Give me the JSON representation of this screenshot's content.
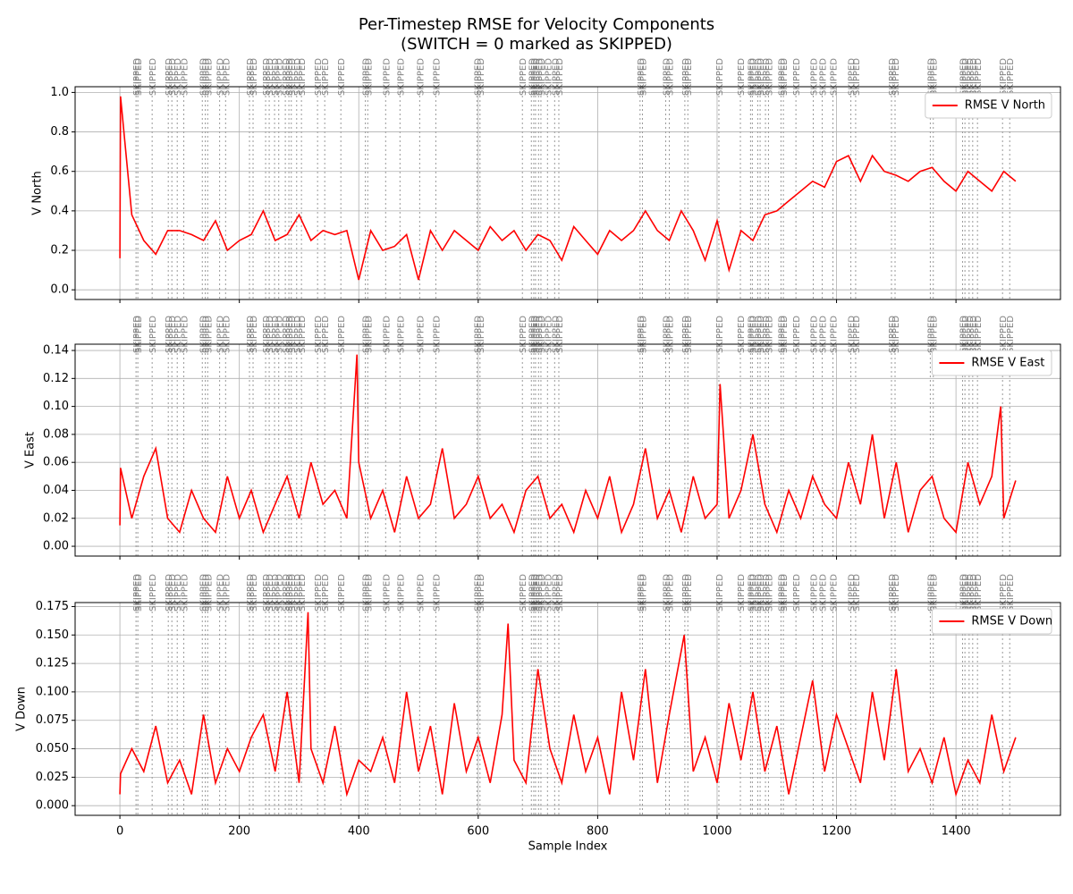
{
  "title": "Per-Timestep RMSE for Velocity Components\n(SWITCH = 0 marked as SKIPPED)",
  "chart_data": [
    {
      "type": "line",
      "ylabel": "V North",
      "legend": "upper right",
      "grid": true,
      "annotation": "SKIPPED",
      "annotation_x": [
        27,
        30,
        54,
        81,
        87,
        96,
        107,
        138,
        143,
        147,
        167,
        177,
        217,
        223,
        244,
        250,
        259,
        266,
        277,
        283,
        287,
        296,
        304,
        331,
        343,
        370,
        411,
        415,
        445,
        469,
        502,
        529,
        598,
        603,
        674,
        689,
        693,
        696,
        701,
        705,
        716,
        728,
        735,
        871,
        875,
        914,
        920,
        946,
        951,
        1003,
        1039,
        1056,
        1059,
        1068,
        1072,
        1081,
        1086,
        1107,
        1111,
        1132,
        1161,
        1176,
        1194,
        1224,
        1232,
        1292,
        1298,
        1357,
        1362,
        1411,
        1415,
        1422,
        1428,
        1436,
        1478,
        1490
      ],
      "x": [
        0,
        1,
        20,
        40,
        60,
        80,
        100,
        120,
        140,
        160,
        180,
        200,
        220,
        240,
        260,
        280,
        300,
        320,
        340,
        360,
        380,
        400,
        420,
        440,
        460,
        480,
        500,
        520,
        540,
        560,
        580,
        600,
        620,
        640,
        660,
        680,
        700,
        720,
        740,
        760,
        780,
        800,
        820,
        840,
        860,
        880,
        900,
        920,
        940,
        960,
        980,
        1000,
        1020,
        1040,
        1060,
        1080,
        1100,
        1120,
        1140,
        1160,
        1180,
        1200,
        1220,
        1240,
        1260,
        1280,
        1300,
        1320,
        1340,
        1360,
        1380,
        1400,
        1420,
        1440,
        1460,
        1480,
        1500
      ],
      "series": [
        {
          "name": "RMSE V North",
          "color": "#ff0000",
          "values": [
            0.16,
            0.98,
            0.38,
            0.25,
            0.18,
            0.3,
            0.3,
            0.28,
            0.25,
            0.35,
            0.2,
            0.25,
            0.28,
            0.4,
            0.25,
            0.28,
            0.38,
            0.25,
            0.3,
            0.28,
            0.3,
            0.05,
            0.3,
            0.2,
            0.22,
            0.28,
            0.05,
            0.3,
            0.2,
            0.3,
            0.25,
            0.2,
            0.32,
            0.25,
            0.3,
            0.2,
            0.28,
            0.25,
            0.15,
            0.32,
            0.25,
            0.18,
            0.3,
            0.25,
            0.3,
            0.4,
            0.3,
            0.25,
            0.4,
            0.3,
            0.15,
            0.35,
            0.1,
            0.3,
            0.25,
            0.38,
            0.4,
            0.45,
            0.5,
            0.55,
            0.52,
            0.65,
            0.68,
            0.55,
            0.68,
            0.6,
            0.58,
            0.55,
            0.6,
            0.62,
            0.55,
            0.5,
            0.6,
            0.55,
            0.5,
            0.6,
            0.55
          ]
        }
      ],
      "xlim": [
        -75,
        1575
      ],
      "xticks": [
        0,
        200,
        400,
        600,
        800,
        1000,
        1200,
        1400
      ],
      "ylim": [
        -0.049,
        1.029
      ],
      "yticks": [
        {
          "value": 0,
          "label": "0.0"
        },
        0.2,
        0.4,
        0.6,
        0.8,
        {
          "value": 1,
          "label": "1.0"
        }
      ]
    },
    {
      "type": "line",
      "ylabel": "V East",
      "legend": "upper right",
      "grid": true,
      "annotation": "SKIPPED",
      "annotation_x": [
        27,
        30,
        54,
        81,
        87,
        96,
        107,
        138,
        143,
        147,
        167,
        177,
        217,
        223,
        244,
        250,
        259,
        266,
        277,
        283,
        287,
        296,
        304,
        331,
        343,
        370,
        411,
        415,
        445,
        469,
        502,
        529,
        598,
        603,
        674,
        689,
        693,
        696,
        701,
        705,
        716,
        728,
        735,
        871,
        875,
        914,
        920,
        946,
        951,
        1003,
        1039,
        1056,
        1059,
        1068,
        1072,
        1081,
        1086,
        1107,
        1111,
        1132,
        1161,
        1176,
        1194,
        1224,
        1232,
        1292,
        1298,
        1357,
        1362,
        1411,
        1415,
        1422,
        1428,
        1436,
        1478,
        1490
      ],
      "x": [
        0,
        1,
        20,
        40,
        60,
        80,
        100,
        120,
        140,
        160,
        180,
        200,
        220,
        240,
        260,
        280,
        300,
        320,
        340,
        360,
        380,
        397,
        400,
        420,
        440,
        460,
        480,
        500,
        520,
        540,
        560,
        580,
        600,
        620,
        640,
        660,
        680,
        700,
        720,
        740,
        760,
        780,
        800,
        820,
        840,
        860,
        880,
        900,
        920,
        940,
        960,
        980,
        1000,
        1005,
        1020,
        1040,
        1060,
        1080,
        1100,
        1120,
        1140,
        1160,
        1180,
        1200,
        1220,
        1240,
        1260,
        1280,
        1300,
        1320,
        1340,
        1360,
        1380,
        1400,
        1420,
        1440,
        1460,
        1475,
        1480,
        1500
      ],
      "series": [
        {
          "name": "RMSE V East",
          "color": "#ff0000",
          "values": [
            0.015,
            0.056,
            0.02,
            0.05,
            0.07,
            0.02,
            0.01,
            0.04,
            0.02,
            0.01,
            0.05,
            0.02,
            0.04,
            0.01,
            0.03,
            0.05,
            0.02,
            0.06,
            0.03,
            0.04,
            0.02,
            0.137,
            0.06,
            0.02,
            0.04,
            0.01,
            0.05,
            0.02,
            0.03,
            0.07,
            0.02,
            0.03,
            0.05,
            0.02,
            0.03,
            0.01,
            0.04,
            0.05,
            0.02,
            0.03,
            0.01,
            0.04,
            0.02,
            0.05,
            0.01,
            0.03,
            0.07,
            0.02,
            0.04,
            0.01,
            0.05,
            0.02,
            0.03,
            0.116,
            0.02,
            0.04,
            0.08,
            0.03,
            0.01,
            0.04,
            0.02,
            0.05,
            0.03,
            0.02,
            0.06,
            0.03,
            0.08,
            0.02,
            0.06,
            0.01,
            0.04,
            0.05,
            0.02,
            0.01,
            0.06,
            0.03,
            0.05,
            0.1,
            0.02,
            0.047
          ]
        }
      ],
      "xlim": [
        -75,
        1575
      ],
      "xticks": [
        0,
        200,
        400,
        600,
        800,
        1000,
        1200,
        1400
      ],
      "ylim": [
        -0.007,
        0.1445
      ],
      "yticks": [
        {
          "value": 0,
          "label": "0.00"
        },
        {
          "value": 0.02,
          "label": "0.02"
        },
        {
          "value": 0.04,
          "label": "0.04"
        },
        {
          "value": 0.06,
          "label": "0.06"
        },
        {
          "value": 0.08,
          "label": "0.08"
        },
        {
          "value": 0.1,
          "label": "0.10"
        },
        {
          "value": 0.12,
          "label": "0.12"
        },
        {
          "value": 0.14,
          "label": "0.14"
        }
      ]
    },
    {
      "type": "line",
      "ylabel": "V Down",
      "xlabel": "Sample Index",
      "legend": "upper right",
      "grid": true,
      "annotation": "SKIPPED",
      "annotation_x": [
        27,
        30,
        54,
        81,
        87,
        96,
        107,
        138,
        143,
        147,
        167,
        177,
        217,
        223,
        244,
        250,
        259,
        266,
        277,
        283,
        287,
        296,
        304,
        331,
        343,
        370,
        411,
        415,
        445,
        469,
        502,
        529,
        598,
        603,
        674,
        689,
        693,
        696,
        701,
        705,
        716,
        728,
        735,
        871,
        875,
        914,
        920,
        946,
        951,
        1003,
        1039,
        1056,
        1059,
        1068,
        1072,
        1081,
        1086,
        1107,
        1111,
        1132,
        1161,
        1176,
        1194,
        1224,
        1232,
        1292,
        1298,
        1357,
        1362,
        1411,
        1415,
        1422,
        1428,
        1436,
        1478,
        1490
      ],
      "x": [
        0,
        1,
        20,
        40,
        60,
        80,
        100,
        120,
        140,
        160,
        180,
        200,
        220,
        240,
        260,
        280,
        300,
        315,
        320,
        340,
        360,
        380,
        400,
        420,
        440,
        460,
        480,
        500,
        520,
        540,
        560,
        580,
        600,
        620,
        640,
        650,
        660,
        680,
        700,
        720,
        740,
        760,
        780,
        800,
        820,
        840,
        860,
        880,
        900,
        920,
        945,
        960,
        980,
        1000,
        1020,
        1040,
        1060,
        1080,
        1100,
        1120,
        1140,
        1160,
        1180,
        1200,
        1220,
        1240,
        1260,
        1280,
        1300,
        1320,
        1340,
        1360,
        1380,
        1400,
        1420,
        1440,
        1460,
        1480,
        1500
      ],
      "series": [
        {
          "name": "RMSE V Down",
          "color": "#ff0000",
          "values": [
            0.01,
            0.028,
            0.05,
            0.03,
            0.07,
            0.02,
            0.04,
            0.01,
            0.08,
            0.02,
            0.05,
            0.03,
            0.06,
            0.08,
            0.03,
            0.1,
            0.02,
            0.17,
            0.05,
            0.02,
            0.07,
            0.01,
            0.04,
            0.03,
            0.06,
            0.02,
            0.1,
            0.03,
            0.07,
            0.01,
            0.09,
            0.03,
            0.06,
            0.02,
            0.08,
            0.16,
            0.04,
            0.02,
            0.12,
            0.05,
            0.02,
            0.08,
            0.03,
            0.06,
            0.01,
            0.1,
            0.04,
            0.12,
            0.02,
            0.08,
            0.15,
            0.03,
            0.06,
            0.02,
            0.09,
            0.04,
            0.1,
            0.03,
            0.07,
            0.01,
            0.06,
            0.11,
            0.03,
            0.08,
            0.05,
            0.02,
            0.1,
            0.04,
            0.12,
            0.03,
            0.05,
            0.02,
            0.06,
            0.01,
            0.04,
            0.02,
            0.08,
            0.03,
            0.06
          ]
        }
      ],
      "xlim": [
        -75,
        1575
      ],
      "xticks": [
        0,
        200,
        400,
        600,
        800,
        1000,
        1200,
        1400
      ],
      "ylim": [
        -0.0085,
        0.1785
      ],
      "yticks": [
        {
          "value": 0,
          "label": "0.000"
        },
        0.025,
        {
          "value": 0.05,
          "label": "0.050"
        },
        0.075,
        {
          "value": 0.1,
          "label": "0.100"
        },
        0.125,
        {
          "value": 0.15,
          "label": "0.150"
        },
        0.175
      ]
    }
  ]
}
